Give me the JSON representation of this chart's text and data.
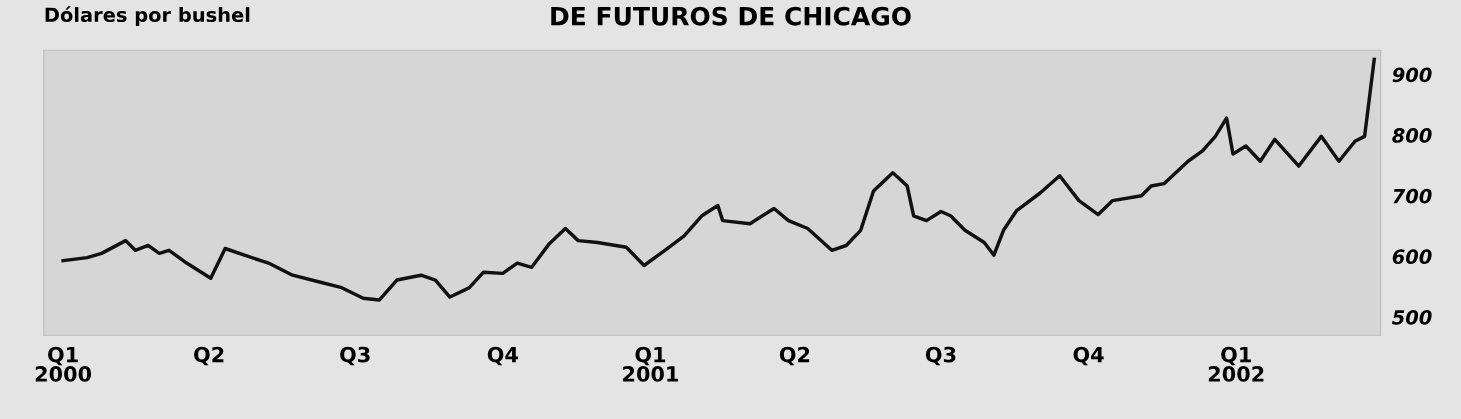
{
  "chart_data": {
    "type": "line",
    "title": "DE FUTUROS DE CHICAGO",
    "ylabel": "Dólares por bushel",
    "x": [
      "2000-01-01",
      "2000-01-16",
      "2000-01-25",
      "2000-02-09",
      "2000-02-15",
      "2000-02-23",
      "2000-03-01",
      "2000-03-07",
      "2000-03-18",
      "2000-04-02",
      "2000-04-11",
      "2000-04-23",
      "2000-05-08",
      "2000-05-23",
      "2000-06-10",
      "2000-06-22",
      "2000-07-06",
      "2000-07-16",
      "2000-07-27",
      "2000-08-11",
      "2000-08-20",
      "2000-08-29",
      "2000-09-10",
      "2000-09-19",
      "2000-10-01",
      "2000-10-10",
      "2000-10-19",
      "2000-10-30",
      "2000-11-09",
      "2000-11-17",
      "2000-11-29",
      "2000-12-17",
      "2000-12-28",
      "2001-01-10",
      "2001-01-22",
      "2001-02-02",
      "2001-02-12",
      "2001-02-15",
      "2001-03-04",
      "2001-03-19",
      "2001-03-28",
      "2001-04-09",
      "2001-04-24",
      "2001-05-03",
      "2001-05-12",
      "2001-05-20",
      "2001-06-01",
      "2001-06-04",
      "2001-06-10",
      "2001-06-14",
      "2001-06-22",
      "2001-07-01",
      "2001-07-07",
      "2001-07-16",
      "2001-07-28",
      "2001-08-03",
      "2001-08-09",
      "2001-08-17",
      "2001-09-01",
      "2001-09-13",
      "2001-09-25",
      "2001-10-07",
      "2001-10-16",
      "2001-11-03",
      "2001-11-09",
      "2001-11-17",
      "2001-12-02",
      "2001-12-11",
      "2001-12-19",
      "2001-12-26",
      "2001-12-30",
      "2002-01-07",
      "2002-01-16",
      "2002-01-25",
      "2002-02-09",
      "2002-02-23",
      "2002-03-06",
      "2002-03-16",
      "2002-03-22",
      "2002-03-28"
    ],
    "series": [
      {
        "color": "#111111",
        "values": [
          593,
          598,
          605,
          626,
          610,
          618,
          605,
          610,
          589,
          564,
          613,
          602,
          589,
          569,
          557,
          549,
          531,
          528,
          561,
          569,
          561,
          533,
          548,
          574,
          572,
          589,
          582,
          621,
          646,
          626,
          623,
          615,
          585,
          610,
          634,
          667,
          684,
          659,
          654,
          679,
          659,
          646,
          610,
          618,
          643,
          708,
          738,
          731,
          716,
          667,
          659,
          674,
          667,
          643,
          623,
          602,
          643,
          675,
          705,
          733,
          692,
          669,
          692,
          700,
          716,
          720,
          757,
          774,
          798,
          828,
          769,
          782,
          757,
          793,
          749,
          798,
          757,
          790,
          798,
          925
        ]
      }
    ],
    "xlim": [
      "1999-12-20",
      "2002-04-01"
    ],
    "xticks": [
      {
        "value": "2000-01-01",
        "label": "Q1\n2000"
      },
      {
        "value": "2000-04-01",
        "label": "Q2"
      },
      {
        "value": "2000-07-01",
        "label": "Q3"
      },
      {
        "value": "2000-10-01",
        "label": "Q4"
      },
      {
        "value": "2001-01-01",
        "label": "Q1\n2001"
      },
      {
        "value": "2001-04-01",
        "label": "Q2"
      },
      {
        "value": "2001-07-01",
        "label": "Q3"
      },
      {
        "value": "2001-10-01",
        "label": "Q4"
      },
      {
        "value": "2002-01-01",
        "label": "Q1\n2002"
      }
    ],
    "ylim": [
      470,
      940
    ],
    "yticks": [
      500,
      600,
      700,
      800,
      900
    ],
    "grid": false,
    "legend": false,
    "marker": "none",
    "line_style": "solid"
  }
}
